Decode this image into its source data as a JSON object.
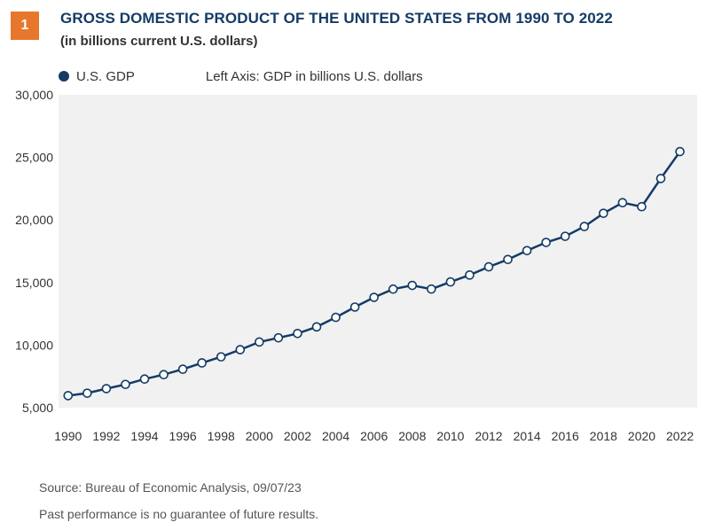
{
  "header": {
    "badge": "1",
    "title": "GROSS DOMESTIC PRODUCT OF THE UNITED STATES FROM 1990 TO 2022",
    "subtitle": "(in billions current U.S. dollars)"
  },
  "legend": {
    "series_label": "U.S. GDP",
    "axis_note": "Left Axis: GDP in billions U.S. dollars"
  },
  "footer": {
    "source": "Source: Bureau of Economic Analysis,  09/07/23",
    "disclaimer": "Past performance is no guarantee of future results."
  },
  "colors": {
    "line": "#143b66",
    "plot_background": "#f1f1f2",
    "badge": "#e8772e",
    "marker_fill": "#ffffff"
  },
  "chart_data": {
    "type": "line",
    "title": "GROSS DOMESTIC PRODUCT OF THE UNITED STATES FROM 1990 TO 2022",
    "subtitle": "(in billions current U.S. dollars)",
    "xlabel": "",
    "ylabel": "",
    "x": [
      1990,
      1991,
      1992,
      1993,
      1994,
      1995,
      1996,
      1997,
      1998,
      1999,
      2000,
      2001,
      2002,
      2003,
      2004,
      2005,
      2006,
      2007,
      2008,
      2009,
      2010,
      2011,
      2012,
      2013,
      2014,
      2015,
      2016,
      2017,
      2018,
      2019,
      2020,
      2021,
      2022
    ],
    "series": [
      {
        "name": "U.S. GDP",
        "values": [
          5963,
          6158,
          6520,
          6859,
          7287,
          7640,
          8073,
          8578,
          9063,
          9631,
          10251,
          10582,
          10929,
          11457,
          12217,
          13039,
          13815,
          14475,
          14770,
          14478,
          15049,
          15600,
          16254,
          16843,
          17551,
          18206,
          18695,
          19477,
          20533,
          21381,
          21060,
          23315,
          25463
        ]
      }
    ],
    "xlim": [
      1990,
      2022
    ],
    "ylim": [
      5000,
      30000
    ],
    "x_ticks": [
      "1990",
      "1992",
      "1994",
      "1996",
      "1998",
      "2000",
      "2002",
      "2004",
      "2006",
      "2008",
      "2010",
      "2012",
      "2014",
      "2016",
      "2018",
      "2020",
      "2022"
    ],
    "y_ticks": [
      "5,000",
      "10,000",
      "15,000",
      "20,000",
      "25,000",
      "30,000"
    ],
    "grid": false,
    "legend_position": "top-left"
  }
}
